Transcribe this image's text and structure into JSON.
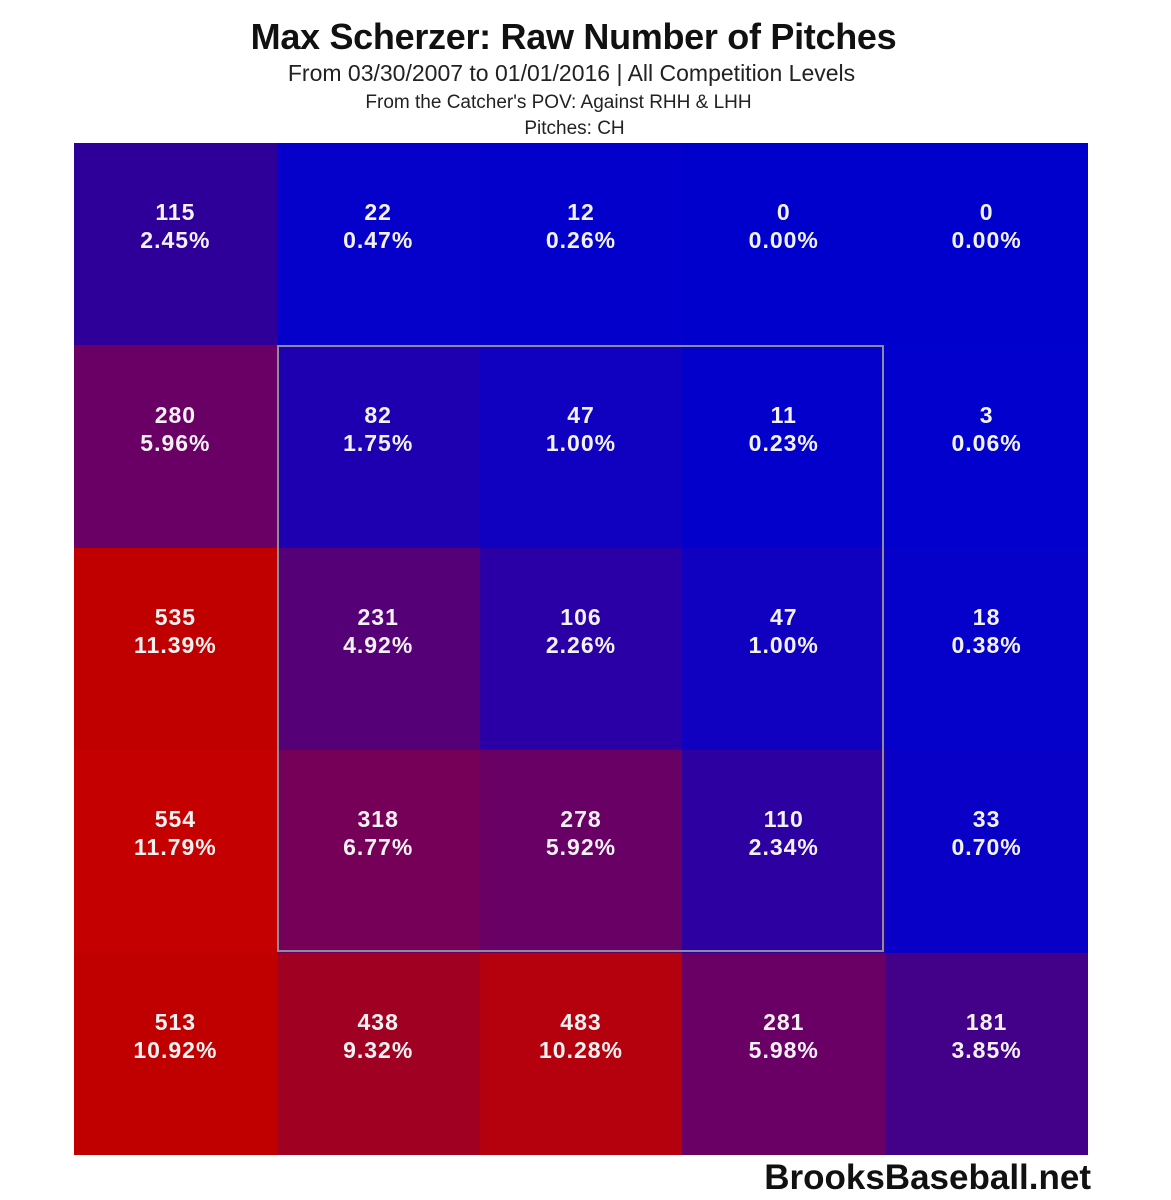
{
  "header": {
    "title": "Max Scherzer: Raw Number of Pitches",
    "subtitle": "From 03/30/2007 to 01/01/2016 | All Competition Levels",
    "perspective": "From the Catcher's POV:   Against RHH & LHH",
    "pitches": "Pitches:  CH"
  },
  "footer": {
    "watermark": "BrooksBaseball.net"
  },
  "chart_data": {
    "type": "heatmap",
    "title": "Max Scherzer: Raw Number of Pitches",
    "subtitle": "From 03/30/2007 to 01/01/2016 | All Competition Levels",
    "notes": [
      "From the Catcher's POV: Against RHH & LHH",
      "Pitches: CH"
    ],
    "rows": 5,
    "cols": 5,
    "strike_zone": {
      "rows": [
        1,
        3
      ],
      "cols": [
        1,
        3
      ]
    },
    "color_scale": {
      "low": "#0000cc",
      "high": "#c00000"
    },
    "counts": [
      [
        115,
        22,
        12,
        0,
        0
      ],
      [
        280,
        82,
        47,
        11,
        3
      ],
      [
        535,
        231,
        106,
        47,
        18
      ],
      [
        554,
        318,
        278,
        110,
        33
      ],
      [
        513,
        438,
        483,
        281,
        181
      ]
    ],
    "percents": [
      [
        "2.45%",
        "0.47%",
        "0.26%",
        "0.00%",
        "0.00%"
      ],
      [
        "5.96%",
        "1.75%",
        "1.00%",
        "0.23%",
        "0.06%"
      ],
      [
        "11.39%",
        "4.92%",
        "2.26%",
        "1.00%",
        "0.38%"
      ],
      [
        "11.79%",
        "6.77%",
        "5.92%",
        "2.34%",
        "0.70%"
      ],
      [
        "10.92%",
        "9.32%",
        "10.28%",
        "5.98%",
        "3.85%"
      ]
    ],
    "cells": [
      [
        {
          "count": "115",
          "pct": "2.45%",
          "color": "#2e0099"
        },
        {
          "count": "22",
          "pct": "0.47%",
          "color": "#0600cb"
        },
        {
          "count": "12",
          "pct": "0.26%",
          "color": "#0300cc"
        },
        {
          "count": "0",
          "pct": "0.00%",
          "color": "#0000cc"
        },
        {
          "count": "0",
          "pct": "0.00%",
          "color": "#0000cc"
        }
      ],
      [
        {
          "count": "280",
          "pct": "5.96%",
          "color": "#6a0066"
        },
        {
          "count": "82",
          "pct": "1.75%",
          "color": "#1e00b0"
        },
        {
          "count": "47",
          "pct": "1.00%",
          "color": "#1000bf"
        },
        {
          "count": "11",
          "pct": "0.23%",
          "color": "#0400cb"
        },
        {
          "count": "3",
          "pct": "0.06%",
          "color": "#0100cc"
        }
      ],
      [
        {
          "count": "535",
          "pct": "11.39%",
          "color": "#c00000"
        },
        {
          "count": "231",
          "pct": "4.92%",
          "color": "#560077"
        },
        {
          "count": "106",
          "pct": "2.26%",
          "color": "#2a00a6"
        },
        {
          "count": "47",
          "pct": "1.00%",
          "color": "#1000bf"
        },
        {
          "count": "18",
          "pct": "0.38%",
          "color": "#0500ca"
        }
      ],
      [
        {
          "count": "554",
          "pct": "11.79%",
          "color": "#c40000"
        },
        {
          "count": "318",
          "pct": "6.77%",
          "color": "#760058"
        },
        {
          "count": "278",
          "pct": "5.92%",
          "color": "#680066"
        },
        {
          "count": "110",
          "pct": "2.34%",
          "color": "#2c00a1"
        },
        {
          "count": "33",
          "pct": "0.70%",
          "color": "#0800c6"
        }
      ],
      [
        {
          "count": "513",
          "pct": "10.92%",
          "color": "#c00000"
        },
        {
          "count": "438",
          "pct": "9.32%",
          "color": "#a00022"
        },
        {
          "count": "483",
          "pct": "10.28%",
          "color": "#b5000e"
        },
        {
          "count": "281",
          "pct": "5.98%",
          "color": "#6a0066"
        },
        {
          "count": "181",
          "pct": "3.85%",
          "color": "#430088"
        }
      ]
    ]
  }
}
